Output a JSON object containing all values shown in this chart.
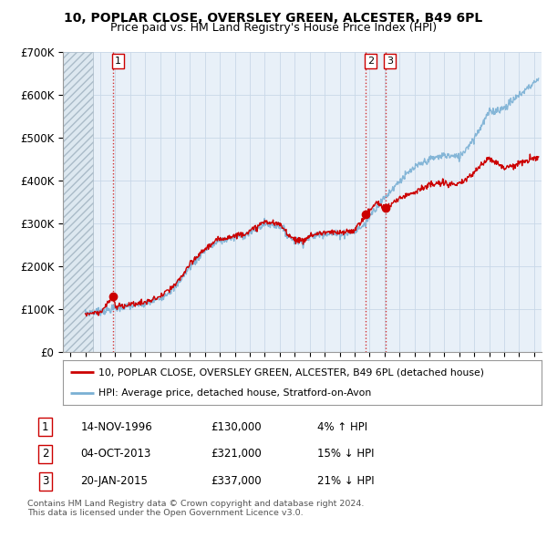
{
  "title": "10, POPLAR CLOSE, OVERSLEY GREEN, ALCESTER, B49 6PL",
  "subtitle": "Price paid vs. HM Land Registry's House Price Index (HPI)",
  "ylabel_ticks": [
    "£0",
    "£100K",
    "£200K",
    "£300K",
    "£400K",
    "£500K",
    "£600K",
    "£700K"
  ],
  "ylim": [
    0,
    700000
  ],
  "xlim_start": 1993.5,
  "xlim_end": 2025.5,
  "sale_dates": [
    1996.87,
    2013.75,
    2015.05
  ],
  "sale_prices": [
    130000,
    321000,
    337000
  ],
  "sale_labels": [
    "1",
    "2",
    "3"
  ],
  "red_color": "#cc0000",
  "blue_color": "#7ab0d4",
  "chart_bg": "#e8f0f8",
  "legend_label_red": "10, POPLAR CLOSE, OVERSLEY GREEN, ALCESTER, B49 6PL (detached house)",
  "legend_label_blue": "HPI: Average price, detached house, Stratford-on-Avon",
  "table_rows": [
    [
      "1",
      "14-NOV-1996",
      "£130,000",
      "4% ↑ HPI"
    ],
    [
      "2",
      "04-OCT-2013",
      "£321,000",
      "15% ↓ HPI"
    ],
    [
      "3",
      "20-JAN-2015",
      "£337,000",
      "21% ↓ HPI"
    ]
  ],
  "footer": "Contains HM Land Registry data © Crown copyright and database right 2024.\nThis data is licensed under the Open Government Licence v3.0.",
  "hatch_start": 1993.5,
  "hatch_end": 1995.5,
  "background_color": "#ffffff",
  "grid_color": "#c8d8e8",
  "title_fontsize": 10,
  "subtitle_fontsize": 9
}
